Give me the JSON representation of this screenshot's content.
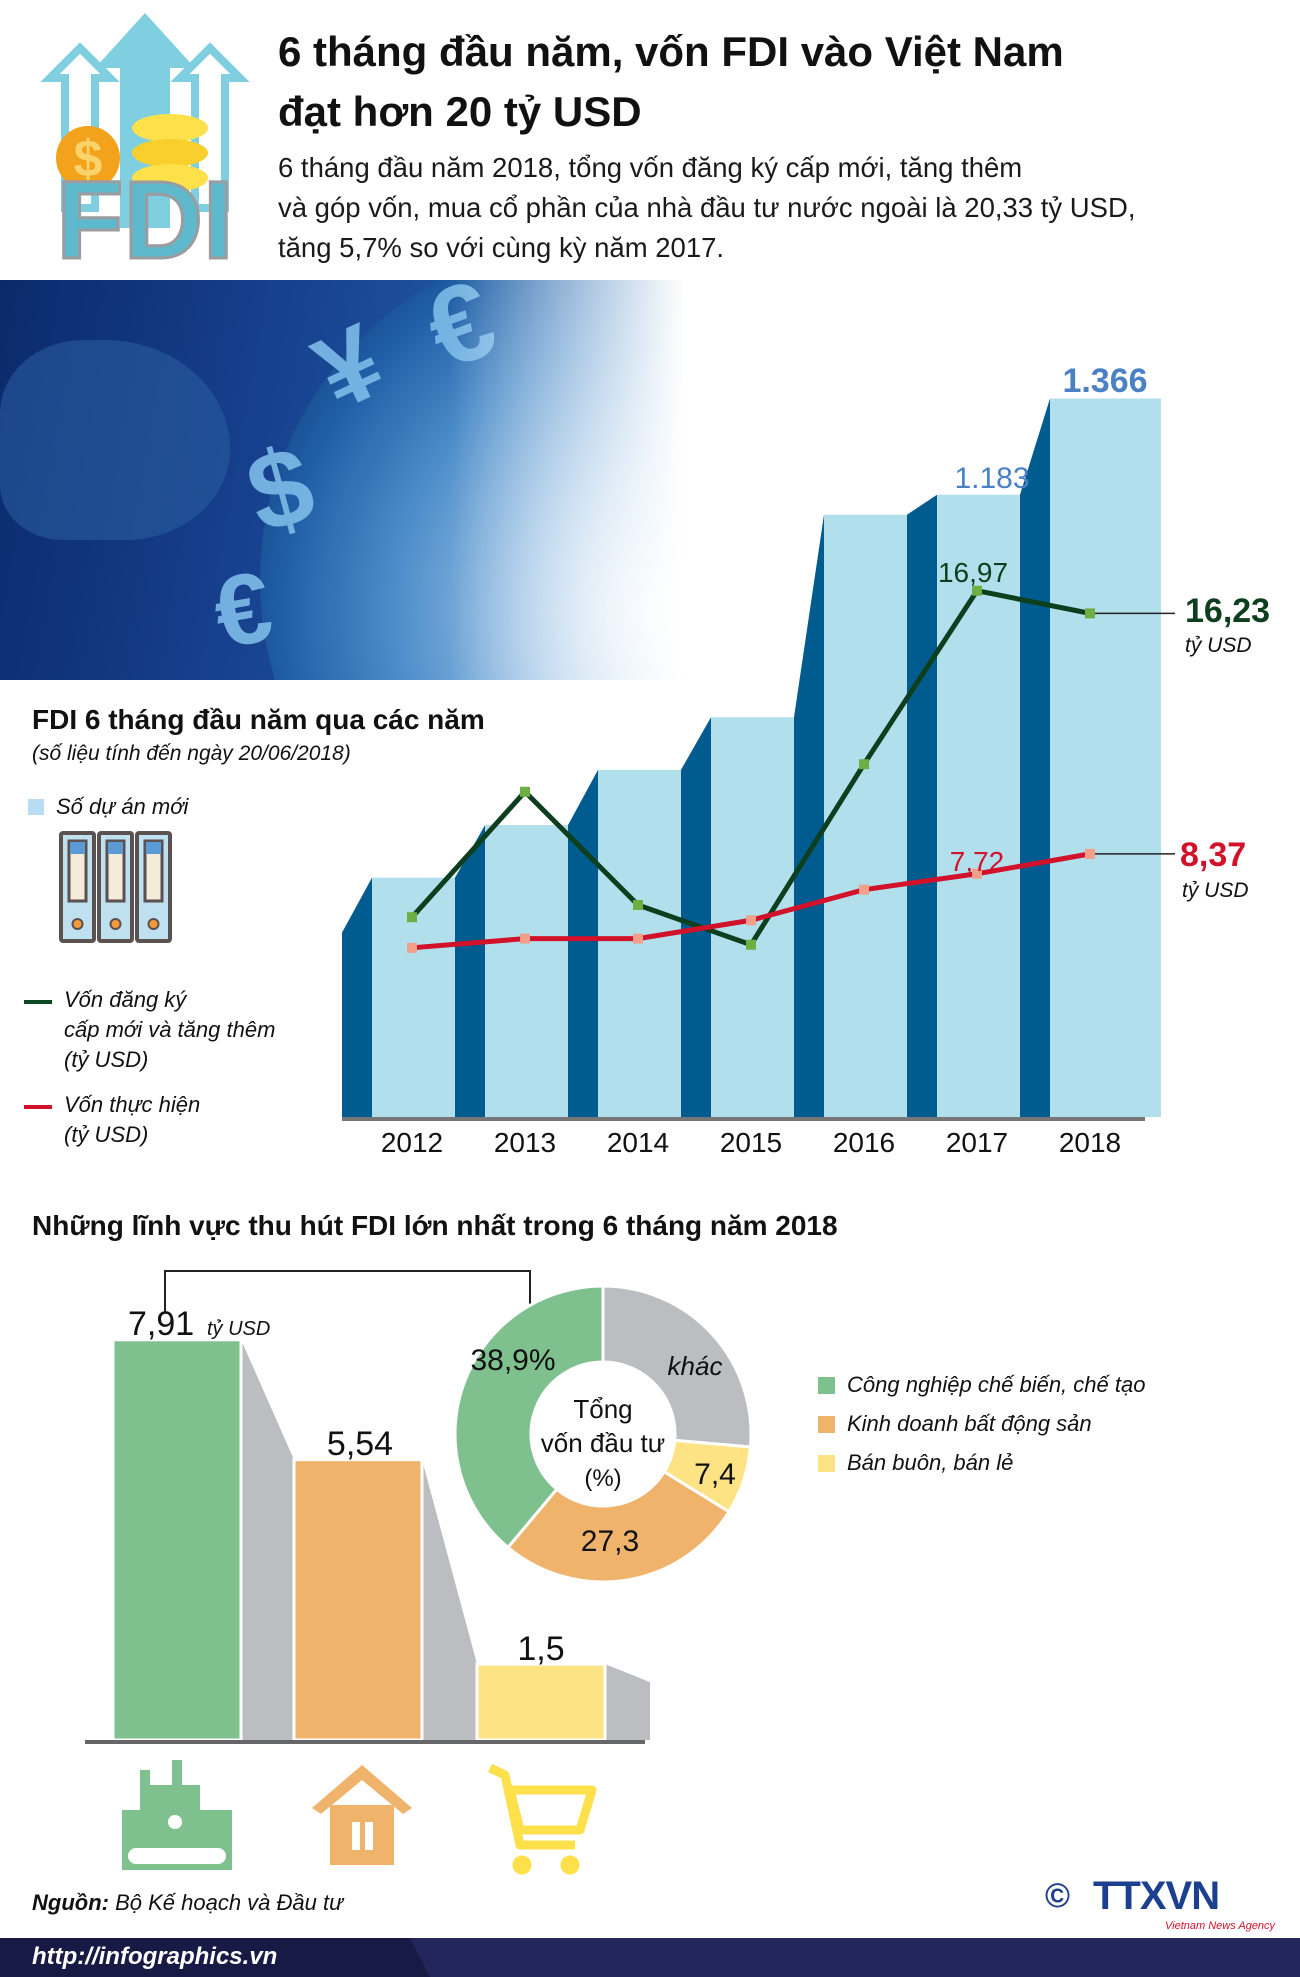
{
  "header": {
    "logo_text": "FDI",
    "title_line1": "6 tháng đầu năm, vốn FDI vào Việt Nam",
    "title_line2": "đạt hơn 20 tỷ USD",
    "intro_line1": "6 tháng đầu năm 2018, tổng vốn đăng ký cấp mới, tăng thêm",
    "intro_line2": "và góp vốn, mua cổ phần của nhà đầu tư nước ngoài là 20,33 tỷ USD,",
    "intro_line3": "tăng 5,7% so với cùng kỳ năm 2017."
  },
  "globe": {
    "symbols": [
      "€",
      "¥",
      "$",
      "€"
    ]
  },
  "colors": {
    "bar_front": "#b1e0ec",
    "bar_side": "#005b8f",
    "green_line": "#0d3f1f",
    "green_marker": "#6cb043",
    "red_line": "#d2122b",
    "red_marker": "#f3a08a",
    "blue_label": "#4a80c4",
    "manufacturing": "#7fc08f",
    "real_estate": "#efb36c",
    "retail": "#fde383",
    "other": "#bcbdc0"
  },
  "chart_data": [
    {
      "type": "bar+line",
      "title": "FDI 6 tháng đầu năm qua các năm",
      "subtitle": "(số liệu tính đến ngày 20/06/2018)",
      "categories": [
        "2012",
        "2013",
        "2014",
        "2015",
        "2016",
        "2017",
        "2018"
      ],
      "series": [
        {
          "name": "Số dự án mới",
          "type": "bar",
          "values": [
            455,
            555,
            660,
            760,
            1145,
            1183,
            1366
          ],
          "labels": [
            "",
            "",
            "",
            "",
            "",
            "1.183",
            "1.366"
          ]
        },
        {
          "name": "Vốn đăng ký cấp mới và tăng thêm (tỷ USD)",
          "type": "line",
          "values": [
            6.3,
            10.4,
            6.7,
            5.4,
            11.3,
            16.97,
            16.23
          ],
          "labels": [
            "",
            "",
            "",
            "",
            "",
            "16,97",
            "16,23"
          ]
        },
        {
          "name": "Vốn thực hiện (tỷ USD)",
          "type": "line",
          "values": [
            5.3,
            5.6,
            5.6,
            6.2,
            7.2,
            7.72,
            8.37
          ],
          "labels": [
            "",
            "",
            "",
            "",
            "",
            "7,72",
            "8,37"
          ]
        }
      ],
      "legend": {
        "bars": "Số dự án mới",
        "green_l1": "Vốn đăng ký",
        "green_l2": "cấp mới và tăng thêm",
        "green_l3": "(tỷ USD)",
        "red_l1": "Vốn thực hiện",
        "red_l2": "(tỷ USD)"
      },
      "unit": "tỷ USD"
    },
    {
      "type": "bar",
      "title": "Những lĩnh vực thu hút FDI lớn nhất trong 6 tháng năm 2018",
      "categories": [
        "Công nghiệp chế biến, chế tạo",
        "Kinh doanh bất động sản",
        "Bán buôn, bán lẻ"
      ],
      "values": [
        7.91,
        5.54,
        1.5
      ],
      "labels": [
        "7,91",
        "5,54",
        "1,5"
      ],
      "unit": "tỷ USD"
    },
    {
      "type": "pie",
      "center_l1": "Tổng",
      "center_l2": "vốn đầu tư",
      "center_l3": "(%)",
      "slices": [
        {
          "name": "khác",
          "value": 26.4,
          "label": "khác"
        },
        {
          "name": "Bán buôn, bán lẻ",
          "value": 7.4,
          "label": "7,4"
        },
        {
          "name": "Kinh doanh bất động sản",
          "value": 27.3,
          "label": "27,3"
        },
        {
          "name": "Công nghiệp chế biến, chế tạo",
          "value": 38.9,
          "label": "38,9%"
        }
      ]
    }
  ],
  "footer": {
    "source_label": "Nguồn:",
    "source_value": " Bộ Kế hoạch và Đầu tư",
    "url": "http://infographics.vn",
    "logo": "TTXVN",
    "logo_sub": "Vietnam News Agency",
    "copyright": "©"
  }
}
